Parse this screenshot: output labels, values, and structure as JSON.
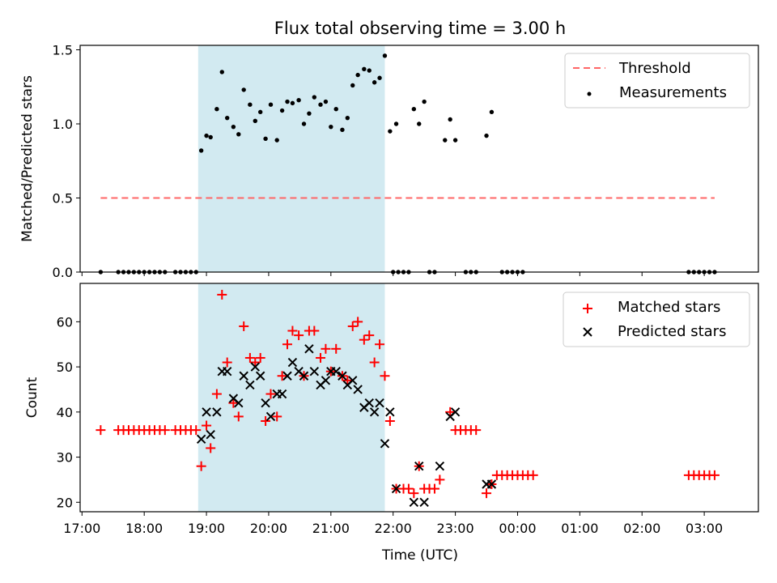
{
  "chart_data": [
    {
      "type": "scatter",
      "title": "Flux total observing time = 3.00 h",
      "xlabel": "",
      "ylabel": "Matched/Predicted stars",
      "ylim": [
        0,
        1.53
      ],
      "xlim_hours": [
        16.97,
        27.87
      ],
      "x_tick_labels": [
        "17:00",
        "18:00",
        "19:00",
        "20:00",
        "21:00",
        "22:00",
        "23:00",
        "00:00",
        "01:00",
        "02:00",
        "03:00"
      ],
      "y_ticks": [
        0.0,
        0.5,
        1.0,
        1.5
      ],
      "y_tick_labels": [
        "0.0",
        "0.5",
        "1.0",
        "1.5"
      ],
      "shaded_span": {
        "start": "18:52",
        "end": "21:52",
        "color": "#add8e6"
      },
      "threshold": {
        "name": "Threshold",
        "value": 0.5,
        "x_start": "17:18",
        "x_end": "03:10",
        "color": "#ff6666"
      },
      "legend": {
        "placement": "upper right",
        "entries": [
          "Threshold",
          "Measurements"
        ]
      },
      "series": [
        {
          "name": "Measurements",
          "marker": "dot",
          "color": "#000000",
          "points": [
            [
              "17:18",
              0
            ],
            [
              "17:35",
              0
            ],
            [
              "17:40",
              0
            ],
            [
              "17:45",
              0
            ],
            [
              "17:50",
              0
            ],
            [
              "17:55",
              0
            ],
            [
              "18:00",
              0
            ],
            [
              "18:05",
              0
            ],
            [
              "18:10",
              0
            ],
            [
              "18:15",
              0
            ],
            [
              "18:20",
              0
            ],
            [
              "18:30",
              0
            ],
            [
              "18:35",
              0
            ],
            [
              "18:40",
              0
            ],
            [
              "18:45",
              0
            ],
            [
              "18:50",
              0
            ],
            [
              "18:55",
              0.82
            ],
            [
              "19:00",
              0.92
            ],
            [
              "19:04",
              0.91
            ],
            [
              "19:10",
              1.1
            ],
            [
              "19:15",
              1.35
            ],
            [
              "19:20",
              1.04
            ],
            [
              "19:26",
              0.98
            ],
            [
              "19:31",
              0.93
            ],
            [
              "19:36",
              1.23
            ],
            [
              "19:42",
              1.13
            ],
            [
              "19:47",
              1.02
            ],
            [
              "19:52",
              1.08
            ],
            [
              "19:57",
              0.9
            ],
            [
              "20:02",
              1.13
            ],
            [
              "20:08",
              0.89
            ],
            [
              "20:13",
              1.09
            ],
            [
              "20:18",
              1.15
            ],
            [
              "20:23",
              1.14
            ],
            [
              "20:29",
              1.16
            ],
            [
              "20:34",
              1.0
            ],
            [
              "20:39",
              1.07
            ],
            [
              "20:44",
              1.18
            ],
            [
              "20:50",
              1.13
            ],
            [
              "20:55",
              1.15
            ],
            [
              "21:00",
              0.98
            ],
            [
              "21:05",
              1.1
            ],
            [
              "21:11",
              0.96
            ],
            [
              "21:16",
              1.04
            ],
            [
              "21:21",
              1.26
            ],
            [
              "21:26",
              1.33
            ],
            [
              "21:32",
              1.37
            ],
            [
              "21:37",
              1.36
            ],
            [
              "21:42",
              1.28
            ],
            [
              "21:47",
              1.31
            ],
            [
              "21:52",
              1.46
            ],
            [
              "21:57",
              0.95
            ],
            [
              "22:03",
              1.0
            ],
            [
              "22:00",
              0
            ],
            [
              "22:05",
              0
            ],
            [
              "22:10",
              0
            ],
            [
              "22:15",
              0
            ],
            [
              "22:20",
              1.1
            ],
            [
              "22:25",
              1.0
            ],
            [
              "22:30",
              1.15
            ],
            [
              "22:35",
              0
            ],
            [
              "22:40",
              0
            ],
            [
              "22:50",
              0.89
            ],
            [
              "22:55",
              1.03
            ],
            [
              "23:00",
              0.89
            ],
            [
              "23:10",
              0
            ],
            [
              "23:15",
              0
            ],
            [
              "23:20",
              0
            ],
            [
              "23:30",
              0.92
            ],
            [
              "23:35",
              1.08
            ],
            [
              "23:45",
              0
            ],
            [
              "23:50",
              0
            ],
            [
              "23:55",
              0
            ],
            [
              "00:00",
              0
            ],
            [
              "00:05",
              0
            ],
            [
              "02:45",
              0
            ],
            [
              "02:50",
              0
            ],
            [
              "02:55",
              0
            ],
            [
              "03:00",
              0
            ],
            [
              "03:05",
              0
            ],
            [
              "03:10",
              0
            ]
          ]
        }
      ]
    },
    {
      "type": "scatter",
      "title": "",
      "xlabel": "Time (UTC)",
      "ylabel": "Count",
      "ylim": [
        17.9,
        68.5
      ],
      "xlim_hours": [
        16.97,
        27.87
      ],
      "x_tick_labels": [
        "17:00",
        "18:00",
        "19:00",
        "20:00",
        "21:00",
        "22:00",
        "23:00",
        "00:00",
        "01:00",
        "02:00",
        "03:00"
      ],
      "y_ticks": [
        20,
        30,
        40,
        50,
        60
      ],
      "y_tick_labels": [
        "20",
        "30",
        "40",
        "50",
        "60"
      ],
      "shaded_span": {
        "start": "18:52",
        "end": "21:52",
        "color": "#add8e6"
      },
      "legend": {
        "placement": "upper right",
        "entries": [
          "Matched stars",
          "Predicted stars"
        ]
      },
      "series": [
        {
          "name": "Matched stars",
          "marker": "plus",
          "color": "#ff0000",
          "points": [
            [
              "17:18",
              36
            ],
            [
              "17:35",
              36
            ],
            [
              "17:40",
              36
            ],
            [
              "17:45",
              36
            ],
            [
              "17:50",
              36
            ],
            [
              "17:55",
              36
            ],
            [
              "18:00",
              36
            ],
            [
              "18:05",
              36
            ],
            [
              "18:10",
              36
            ],
            [
              "18:15",
              36
            ],
            [
              "18:20",
              36
            ],
            [
              "18:30",
              36
            ],
            [
              "18:35",
              36
            ],
            [
              "18:40",
              36
            ],
            [
              "18:45",
              36
            ],
            [
              "18:50",
              36
            ],
            [
              "18:55",
              28
            ],
            [
              "19:00",
              37
            ],
            [
              "19:04",
              32
            ],
            [
              "19:10",
              44
            ],
            [
              "19:15",
              66
            ],
            [
              "19:20",
              51
            ],
            [
              "19:26",
              42
            ],
            [
              "19:31",
              39
            ],
            [
              "19:36",
              59
            ],
            [
              "19:42",
              52
            ],
            [
              "19:47",
              51
            ],
            [
              "19:52",
              52
            ],
            [
              "19:57",
              38
            ],
            [
              "20:02",
              44
            ],
            [
              "20:08",
              39
            ],
            [
              "20:13",
              48
            ],
            [
              "20:18",
              55
            ],
            [
              "20:23",
              58
            ],
            [
              "20:29",
              57
            ],
            [
              "20:34",
              48
            ],
            [
              "20:39",
              58
            ],
            [
              "20:44",
              58
            ],
            [
              "20:50",
              52
            ],
            [
              "20:55",
              54
            ],
            [
              "21:00",
              49
            ],
            [
              "21:05",
              54
            ],
            [
              "21:11",
              48
            ],
            [
              "21:16",
              47
            ],
            [
              "21:21",
              59
            ],
            [
              "21:26",
              60
            ],
            [
              "21:32",
              56
            ],
            [
              "21:37",
              57
            ],
            [
              "21:42",
              51
            ],
            [
              "21:47",
              55
            ],
            [
              "21:52",
              48
            ],
            [
              "21:57",
              38
            ],
            [
              "22:03",
              23
            ],
            [
              "22:10",
              23
            ],
            [
              "22:15",
              23
            ],
            [
              "22:20",
              22
            ],
            [
              "22:25",
              28
            ],
            [
              "22:30",
              23
            ],
            [
              "22:35",
              23
            ],
            [
              "22:40",
              23
            ],
            [
              "22:45",
              25
            ],
            [
              "22:55",
              40
            ],
            [
              "23:00",
              36
            ],
            [
              "23:05",
              36
            ],
            [
              "23:10",
              36
            ],
            [
              "23:15",
              36
            ],
            [
              "23:20",
              36
            ],
            [
              "23:30",
              22
            ],
            [
              "23:35",
              24
            ],
            [
              "23:40",
              26
            ],
            [
              "23:45",
              26
            ],
            [
              "23:50",
              26
            ],
            [
              "23:55",
              26
            ],
            [
              "00:00",
              26
            ],
            [
              "00:05",
              26
            ],
            [
              "00:10",
              26
            ],
            [
              "00:15",
              26
            ],
            [
              "02:45",
              26
            ],
            [
              "02:50",
              26
            ],
            [
              "02:55",
              26
            ],
            [
              "03:00",
              26
            ],
            [
              "03:05",
              26
            ],
            [
              "03:10",
              26
            ]
          ]
        },
        {
          "name": "Predicted stars",
          "marker": "x",
          "color": "#000000",
          "points": [
            [
              "18:55",
              34
            ],
            [
              "19:00",
              40
            ],
            [
              "19:04",
              35
            ],
            [
              "19:10",
              40
            ],
            [
              "19:15",
              49
            ],
            [
              "19:20",
              49
            ],
            [
              "19:26",
              43
            ],
            [
              "19:31",
              42
            ],
            [
              "19:36",
              48
            ],
            [
              "19:42",
              46
            ],
            [
              "19:47",
              50
            ],
            [
              "19:52",
              48
            ],
            [
              "19:57",
              42
            ],
            [
              "20:02",
              39
            ],
            [
              "20:08",
              44
            ],
            [
              "20:13",
              44
            ],
            [
              "20:18",
              48
            ],
            [
              "20:23",
              51
            ],
            [
              "20:29",
              49
            ],
            [
              "20:34",
              48
            ],
            [
              "20:39",
              54
            ],
            [
              "20:44",
              49
            ],
            [
              "20:50",
              46
            ],
            [
              "20:55",
              47
            ],
            [
              "21:00",
              49
            ],
            [
              "21:05",
              49
            ],
            [
              "21:11",
              48
            ],
            [
              "21:16",
              46
            ],
            [
              "21:21",
              47
            ],
            [
              "21:26",
              45
            ],
            [
              "21:32",
              41
            ],
            [
              "21:37",
              42
            ],
            [
              "21:42",
              40
            ],
            [
              "21:47",
              42
            ],
            [
              "21:52",
              33
            ],
            [
              "21:57",
              40
            ],
            [
              "22:03",
              23
            ],
            [
              "22:20",
              20
            ],
            [
              "22:25",
              28
            ],
            [
              "22:30",
              20
            ],
            [
              "22:45",
              28
            ],
            [
              "22:55",
              39
            ],
            [
              "23:00",
              40
            ],
            [
              "23:30",
              24
            ],
            [
              "23:35",
              24
            ]
          ]
        }
      ]
    }
  ]
}
